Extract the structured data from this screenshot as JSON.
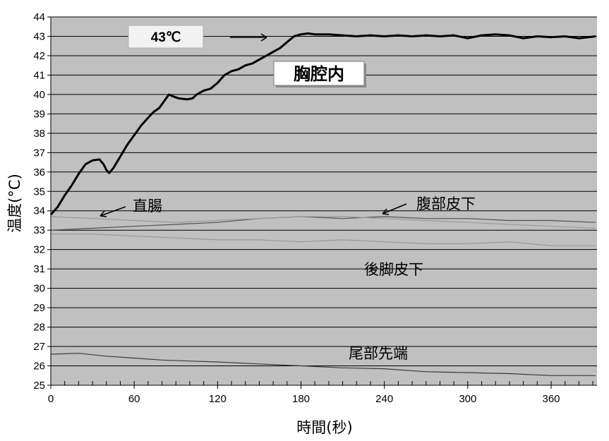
{
  "chart_data": {
    "type": "line",
    "xlabel": "時間(秒)",
    "ylabel": "温度(°C)",
    "xlim": [
      0,
      393
    ],
    "ylim": [
      25,
      44
    ],
    "xticks": [
      0,
      60,
      120,
      180,
      240,
      300,
      360
    ],
    "yticks": [
      25,
      26,
      27,
      28,
      29,
      30,
      31,
      32,
      33,
      34,
      35,
      36,
      37,
      38,
      39,
      40,
      41,
      42,
      43,
      44
    ],
    "grid": "horizontal",
    "background": "#c0c0c0",
    "series": [
      {
        "name": "胸腔内",
        "color": "#000000",
        "width": 3,
        "points": [
          [
            0,
            33.8
          ],
          [
            5,
            34.2
          ],
          [
            10,
            34.8
          ],
          [
            15,
            35.3
          ],
          [
            20,
            35.9
          ],
          [
            25,
            36.4
          ],
          [
            30,
            36.6
          ],
          [
            35,
            36.65
          ],
          [
            38,
            36.4
          ],
          [
            40,
            36.1
          ],
          [
            42,
            35.95
          ],
          [
            45,
            36.2
          ],
          [
            50,
            36.8
          ],
          [
            55,
            37.4
          ],
          [
            60,
            37.9
          ],
          [
            65,
            38.4
          ],
          [
            70,
            38.8
          ],
          [
            74,
            39.1
          ],
          [
            78,
            39.3
          ],
          [
            82,
            39.7
          ],
          [
            85,
            40.0
          ],
          [
            88,
            39.9
          ],
          [
            92,
            39.8
          ],
          [
            98,
            39.75
          ],
          [
            102,
            39.8
          ],
          [
            105,
            40.0
          ],
          [
            110,
            40.2
          ],
          [
            115,
            40.3
          ],
          [
            120,
            40.6
          ],
          [
            125,
            41.0
          ],
          [
            130,
            41.2
          ],
          [
            135,
            41.3
          ],
          [
            140,
            41.5
          ],
          [
            145,
            41.6
          ],
          [
            150,
            41.8
          ],
          [
            155,
            42.0
          ],
          [
            160,
            42.2
          ],
          [
            165,
            42.4
          ],
          [
            170,
            42.7
          ],
          [
            175,
            43.0
          ],
          [
            180,
            43.1
          ],
          [
            185,
            43.15
          ],
          [
            190,
            43.1
          ],
          [
            200,
            43.1
          ],
          [
            210,
            43.05
          ],
          [
            220,
            43.0
          ],
          [
            230,
            43.05
          ],
          [
            240,
            43.0
          ],
          [
            250,
            43.05
          ],
          [
            260,
            43.0
          ],
          [
            270,
            43.05
          ],
          [
            280,
            43.0
          ],
          [
            290,
            43.05
          ],
          [
            300,
            42.9
          ],
          [
            310,
            43.05
          ],
          [
            320,
            43.1
          ],
          [
            330,
            43.05
          ],
          [
            340,
            42.9
          ],
          [
            350,
            43.0
          ],
          [
            360,
            42.95
          ],
          [
            370,
            43.0
          ],
          [
            380,
            42.9
          ],
          [
            392,
            43.0
          ]
        ]
      },
      {
        "name": "直腸",
        "color": "#505050",
        "width": 1.2,
        "points": [
          [
            0,
            33.0
          ],
          [
            30,
            33.1
          ],
          [
            60,
            33.2
          ],
          [
            90,
            33.3
          ],
          [
            120,
            33.4
          ],
          [
            150,
            33.6
          ],
          [
            180,
            33.7
          ],
          [
            210,
            33.6
          ],
          [
            240,
            33.7
          ],
          [
            270,
            33.6
          ],
          [
            300,
            33.6
          ],
          [
            330,
            33.5
          ],
          [
            360,
            33.5
          ],
          [
            392,
            33.4
          ]
        ]
      },
      {
        "name": "腹部皮下",
        "color": "#9a9a9a",
        "width": 1.2,
        "points": [
          [
            0,
            33.7
          ],
          [
            30,
            33.6
          ],
          [
            60,
            33.5
          ],
          [
            90,
            33.4
          ],
          [
            120,
            33.5
          ],
          [
            150,
            33.6
          ],
          [
            180,
            33.7
          ],
          [
            210,
            33.7
          ],
          [
            240,
            33.6
          ],
          [
            270,
            33.5
          ],
          [
            300,
            33.4
          ],
          [
            330,
            33.3
          ],
          [
            360,
            33.2
          ],
          [
            392,
            33.1
          ]
        ]
      },
      {
        "name": "後脚皮下",
        "color": "#9a9a9a",
        "width": 1.2,
        "points": [
          [
            0,
            32.8
          ],
          [
            30,
            32.8
          ],
          [
            60,
            32.7
          ],
          [
            90,
            32.6
          ],
          [
            120,
            32.5
          ],
          [
            150,
            32.5
          ],
          [
            180,
            32.4
          ],
          [
            210,
            32.5
          ],
          [
            240,
            32.4
          ],
          [
            270,
            32.3
          ],
          [
            300,
            32.3
          ],
          [
            330,
            32.4
          ],
          [
            360,
            32.2
          ],
          [
            392,
            32.2
          ]
        ]
      },
      {
        "name": "尾部先端",
        "color": "#3a3a3a",
        "width": 1.2,
        "points": [
          [
            0,
            26.6
          ],
          [
            20,
            26.65
          ],
          [
            40,
            26.5
          ],
          [
            60,
            26.4
          ],
          [
            80,
            26.3
          ],
          [
            100,
            26.25
          ],
          [
            120,
            26.2
          ],
          [
            150,
            26.1
          ],
          [
            180,
            26.0
          ],
          [
            210,
            25.9
          ],
          [
            240,
            25.85
          ],
          [
            270,
            25.7
          ],
          [
            300,
            25.65
          ],
          [
            330,
            25.6
          ],
          [
            360,
            25.5
          ],
          [
            392,
            25.5
          ]
        ]
      }
    ],
    "annotations": {
      "badge_43": {
        "text": "43℃"
      },
      "label_thoracic": {
        "text": "胸腔内"
      },
      "label_rectum": {
        "text": "直腸"
      },
      "label_abdomen": {
        "text": "腹部皮下"
      },
      "label_hindleg": {
        "text": "後脚皮下"
      },
      "label_tail": {
        "text": "尾部先端"
      }
    }
  }
}
